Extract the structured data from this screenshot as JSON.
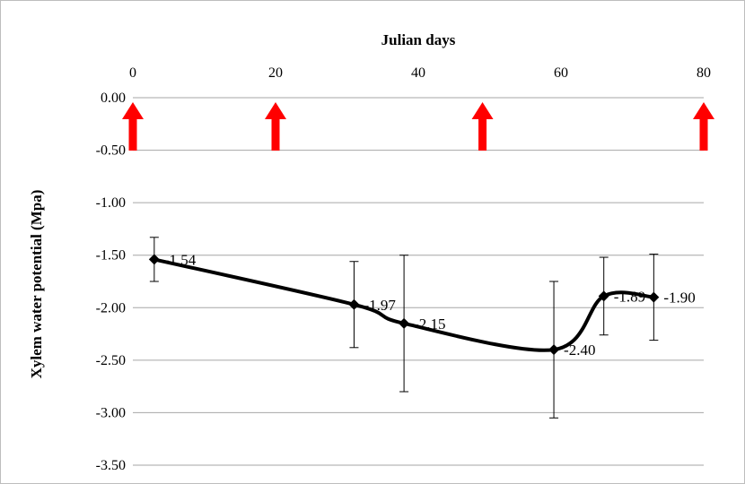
{
  "chart_data": {
    "type": "line",
    "title": "Julian days",
    "xlabel": "Julian days",
    "ylabel": "Xylem water potential (Mpa)",
    "x_axis_position": "top",
    "xlim": [
      0,
      80
    ],
    "ylim": [
      -3.5,
      0
    ],
    "x_ticks": [
      "0",
      "20",
      "40",
      "60",
      "80"
    ],
    "y_ticks": [
      "0.00",
      "-0.50",
      "-1.00",
      "-1.50",
      "-2.00",
      "-2.50",
      "-3.00",
      "-3.50"
    ],
    "grid": "horizontal",
    "legend": "none",
    "series": [
      {
        "x": [
          3,
          31,
          38,
          59,
          66,
          73
        ],
        "y": [
          -1.54,
          -1.97,
          -2.15,
          -2.4,
          -1.89,
          -1.9
        ],
        "error": [
          0.21,
          0.41,
          0.65,
          0.65,
          0.37,
          0.41
        ],
        "data_labels": [
          "-1.54",
          "-1.97",
          "-2.15",
          "-2.40",
          "-1.89",
          "-1.90"
        ],
        "color": "#000000",
        "marker": "diamond",
        "smooth": true
      }
    ],
    "annotations": {
      "type": "upward arrows",
      "color": "#ff0000",
      "x": [
        0,
        20,
        49,
        80
      ]
    }
  }
}
